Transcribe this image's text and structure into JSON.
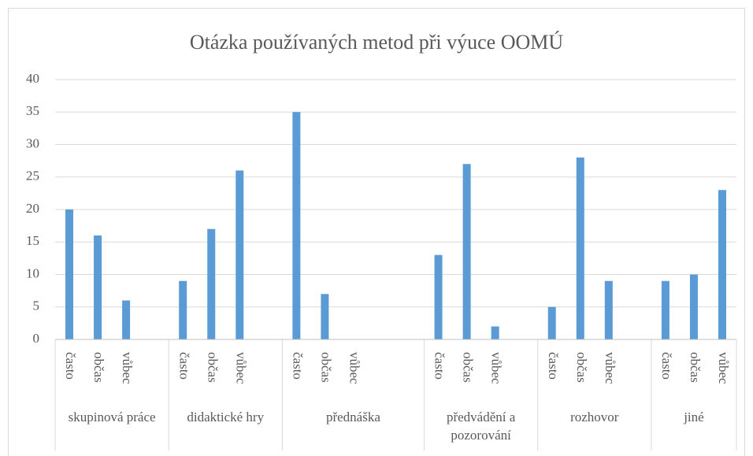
{
  "chart_data": {
    "type": "bar",
    "title": "Otázka používaných metod při výuce OOMÚ",
    "color": "#5b9bd5",
    "grid": true,
    "ylim": [
      0,
      40
    ],
    "yticks": [
      0,
      5,
      10,
      15,
      20,
      25,
      30,
      35,
      40
    ],
    "groups": [
      {
        "name": "skupinová práce",
        "categories": [
          "často",
          "občas",
          "vůbec",
          null
        ],
        "values": [
          20,
          16,
          6,
          null
        ]
      },
      {
        "name": "didaktické hry",
        "categories": [
          "často",
          "občas",
          "vůbec",
          null
        ],
        "values": [
          9,
          17,
          26,
          null
        ]
      },
      {
        "name": "přednáška",
        "categories": [
          "často",
          "občas",
          "vůbec",
          null,
          null
        ],
        "values": [
          35,
          7,
          0,
          null,
          null
        ]
      },
      {
        "name": "předvádění a pozorování",
        "categories": [
          "často",
          "občas",
          "vůbec",
          null
        ],
        "values": [
          13,
          27,
          2,
          null
        ]
      },
      {
        "name": "rozhovor",
        "categories": [
          "často",
          "občas",
          "vůbec",
          null
        ],
        "values": [
          5,
          28,
          9,
          null
        ]
      },
      {
        "name": "jiné",
        "categories": [
          "často",
          "občas",
          "vůbec"
        ],
        "values": [
          9,
          10,
          23
        ]
      }
    ]
  }
}
